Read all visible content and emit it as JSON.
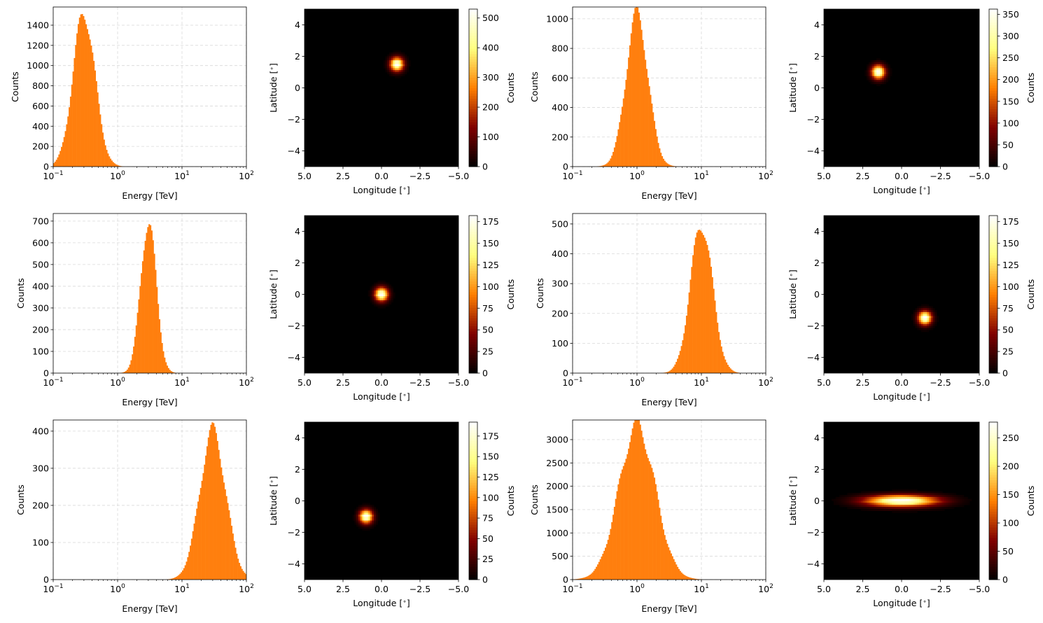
{
  "chart_data": [
    {
      "type": "bar",
      "xlabel": "Energy [TeV]",
      "ylabel": "Counts",
      "xscale": "log",
      "xlim": [
        0.1,
        100
      ],
      "ylim": [
        0,
        1580
      ],
      "xticks": [
        0.1,
        1,
        10,
        100
      ],
      "xtick_labels": [
        "10",
        "10",
        "10",
        "10"
      ],
      "xtick_exponents": [
        "−1",
        "0",
        "1",
        "2"
      ],
      "yticks": [
        0,
        200,
        400,
        600,
        800,
        1000,
        1200,
        1400
      ],
      "ytick_labels": [
        "0",
        "200",
        "400",
        "600",
        "800",
        "1000",
        "1200",
        "1400"
      ],
      "grid": true,
      "color": "#ff7f0e",
      "peak_energy": 0.3,
      "peak_count": 1520,
      "log_width": 0.17
    },
    {
      "type": "heatmap",
      "xlabel": "Longitude [$^{\\circ}$]",
      "ylabel": "Latitude [$^{\\circ}$]",
      "colorbar_label": "Counts",
      "xlim": [
        5,
        -5
      ],
      "ylim": [
        -5,
        5
      ],
      "xticks": [
        5,
        2.5,
        0,
        -2.5,
        -5
      ],
      "xtick_labels": [
        "5.0",
        "2.5",
        "0.0",
        "−2.5",
        "−5.0"
      ],
      "yticks": [
        4,
        2,
        0,
        -2,
        -4
      ],
      "ytick_labels": [
        "4",
        "2",
        "0",
        "−2",
        "−4"
      ],
      "colormap": "afmhot",
      "source": {
        "lon": -1.0,
        "lat": 1.5,
        "sigma_lon": 0.3,
        "sigma_lat": 0.3
      },
      "clim": [
        0,
        530
      ],
      "cbar_ticks": [
        0,
        100,
        200,
        300,
        400,
        500
      ],
      "cbar_tick_labels": [
        "0",
        "100",
        "200",
        "300",
        "400",
        "500"
      ]
    },
    {
      "type": "bar",
      "xlabel": "Energy [TeV]",
      "ylabel": "Counts",
      "xscale": "log",
      "xlim": [
        0.1,
        100
      ],
      "ylim": [
        0,
        1080
      ],
      "xticks": [
        0.1,
        1,
        10,
        100
      ],
      "xtick_labels": [
        "10",
        "10",
        "10",
        "10"
      ],
      "xtick_exponents": [
        "−1",
        "0",
        "1",
        "2"
      ],
      "yticks": [
        0,
        200,
        400,
        600,
        800,
        1000
      ],
      "ytick_labels": [
        "0",
        "200",
        "400",
        "600",
        "800",
        "1000"
      ],
      "grid": true,
      "color": "#ff7f0e",
      "peak_energy": 1.0,
      "peak_count": 1030,
      "log_width": 0.17
    },
    {
      "type": "heatmap",
      "xlabel": "Longitude [$^{\\circ}$]",
      "ylabel": "Latitude [$^{\\circ}$]",
      "colorbar_label": "Counts",
      "xlim": [
        5,
        -5
      ],
      "ylim": [
        -5,
        5
      ],
      "xticks": [
        5,
        2.5,
        0,
        -2.5,
        -5
      ],
      "xtick_labels": [
        "5.0",
        "2.5",
        "0.0",
        "−2.5",
        "−5.0"
      ],
      "yticks": [
        4,
        2,
        0,
        -2,
        -4
      ],
      "ytick_labels": [
        "4",
        "2",
        "0",
        "−2",
        "−4"
      ],
      "colormap": "afmhot",
      "source": {
        "lon": 1.5,
        "lat": 1.0,
        "sigma_lon": 0.3,
        "sigma_lat": 0.3
      },
      "clim": [
        0,
        362
      ],
      "cbar_ticks": [
        0,
        50,
        100,
        150,
        200,
        250,
        300,
        350
      ],
      "cbar_tick_labels": [
        "0",
        "50",
        "100",
        "150",
        "200",
        "250",
        "300",
        "350"
      ]
    },
    {
      "type": "bar",
      "xlabel": "Energy [TeV]",
      "ylabel": "Counts",
      "xscale": "log",
      "xlim": [
        0.1,
        100
      ],
      "ylim": [
        0,
        735
      ],
      "xticks": [
        0.1,
        1,
        10,
        100
      ],
      "xtick_labels": [
        "10",
        "10",
        "10",
        "10"
      ],
      "xtick_exponents": [
        "−1",
        "0",
        "1",
        "2"
      ],
      "yticks": [
        0,
        100,
        200,
        300,
        400,
        500,
        600,
        700
      ],
      "ytick_labels": [
        "0",
        "100",
        "200",
        "300",
        "400",
        "500",
        "600",
        "700"
      ],
      "grid": true,
      "color": "#ff7f0e",
      "peak_energy": 3.0,
      "peak_count": 700,
      "log_width": 0.12
    },
    {
      "type": "heatmap",
      "xlabel": "Longitude [$^{\\circ}$]",
      "ylabel": "Latitude [$^{\\circ}$]",
      "colorbar_label": "Counts",
      "xlim": [
        5,
        -5
      ],
      "ylim": [
        -5,
        5
      ],
      "xticks": [
        5,
        2.5,
        0,
        -2.5,
        -5
      ],
      "xtick_labels": [
        "5.0",
        "2.5",
        "0.0",
        "−2.5",
        "−5.0"
      ],
      "yticks": [
        4,
        2,
        0,
        -2,
        -4
      ],
      "ytick_labels": [
        "4",
        "2",
        "0",
        "−2",
        "−4"
      ],
      "colormap": "afmhot",
      "source": {
        "lon": 0.0,
        "lat": 0.0,
        "sigma_lon": 0.3,
        "sigma_lat": 0.3
      },
      "clim": [
        0,
        182
      ],
      "cbar_ticks": [
        0,
        25,
        50,
        75,
        100,
        125,
        150,
        175
      ],
      "cbar_tick_labels": [
        "0",
        "25",
        "50",
        "75",
        "100",
        "125",
        "150",
        "175"
      ]
    },
    {
      "type": "bar",
      "xlabel": "Energy [TeV]",
      "ylabel": "Counts",
      "xscale": "log",
      "xlim": [
        0.1,
        100
      ],
      "ylim": [
        0,
        535
      ],
      "xticks": [
        0.1,
        1,
        10,
        100
      ],
      "xtick_labels": [
        "10",
        "10",
        "10",
        "10"
      ],
      "xtick_exponents": [
        "−1",
        "0",
        "1",
        "2"
      ],
      "yticks": [
        0,
        100,
        200,
        300,
        400,
        500
      ],
      "ytick_labels": [
        "0",
        "100",
        "200",
        "300",
        "400",
        "500"
      ],
      "grid": true,
      "color": "#ff7f0e",
      "peak_energy": 10.0,
      "peak_count": 500,
      "log_width": 0.17
    },
    {
      "type": "heatmap",
      "xlabel": "Longitude [$^{\\circ}$]",
      "ylabel": "Latitude [$^{\\circ}$]",
      "colorbar_label": "Counts",
      "xlim": [
        5,
        -5
      ],
      "ylim": [
        -5,
        5
      ],
      "xticks": [
        5,
        2.5,
        0,
        -2.5,
        -5
      ],
      "xtick_labels": [
        "5.0",
        "2.5",
        "0.0",
        "−2.5",
        "−5.0"
      ],
      "yticks": [
        4,
        2,
        0,
        -2,
        -4
      ],
      "ytick_labels": [
        "4",
        "2",
        "0",
        "−2",
        "−4"
      ],
      "colormap": "afmhot",
      "source": {
        "lon": -1.5,
        "lat": -1.5,
        "sigma_lon": 0.3,
        "sigma_lat": 0.3
      },
      "clim": [
        0,
        182
      ],
      "cbar_ticks": [
        0,
        25,
        50,
        75,
        100,
        125,
        150,
        175
      ],
      "cbar_tick_labels": [
        "0",
        "25",
        "50",
        "75",
        "100",
        "125",
        "150",
        "175"
      ]
    },
    {
      "type": "bar",
      "xlabel": "Energy [TeV]",
      "ylabel": "Counts",
      "xscale": "log",
      "xlim": [
        0.1,
        100
      ],
      "ylim": [
        0,
        430
      ],
      "xticks": [
        0.1,
        1,
        10,
        100
      ],
      "xtick_labels": [
        "10",
        "10",
        "10",
        "10"
      ],
      "xtick_exponents": [
        "−1",
        "0",
        "1",
        "2"
      ],
      "yticks": [
        0,
        100,
        200,
        300,
        400
      ],
      "ytick_labels": [
        "0",
        "100",
        "200",
        "300",
        "400"
      ],
      "grid": true,
      "color": "#ff7f0e",
      "peak_energy": 30.0,
      "peak_count": 400,
      "log_width": 0.2
    },
    {
      "type": "heatmap",
      "xlabel": "Longitude [$^{\\circ}$]",
      "ylabel": "Latitude [$^{\\circ}$]",
      "colorbar_label": "Counts",
      "xlim": [
        5,
        -5
      ],
      "ylim": [
        -5,
        5
      ],
      "xticks": [
        5,
        2.5,
        0,
        -2.5,
        -5
      ],
      "xtick_labels": [
        "5.0",
        "2.5",
        "0.0",
        "−2.5",
        "−5.0"
      ],
      "yticks": [
        4,
        2,
        0,
        -2,
        -4
      ],
      "ytick_labels": [
        "4",
        "2",
        "0",
        "−2",
        "−4"
      ],
      "colormap": "afmhot",
      "source": {
        "lon": 1.0,
        "lat": -1.0,
        "sigma_lon": 0.3,
        "sigma_lat": 0.3
      },
      "clim": [
        0,
        192
      ],
      "cbar_ticks": [
        0,
        25,
        50,
        75,
        100,
        125,
        150,
        175
      ],
      "cbar_tick_labels": [
        "0",
        "25",
        "50",
        "75",
        "100",
        "125",
        "150",
        "175"
      ]
    },
    {
      "type": "bar",
      "xlabel": "Energy [TeV]",
      "ylabel": "Counts",
      "xscale": "log",
      "xlim": [
        0.1,
        100
      ],
      "ylim": [
        0,
        3420
      ],
      "xticks": [
        0.1,
        1,
        10,
        100
      ],
      "xtick_labels": [
        "10",
        "10",
        "10",
        "10"
      ],
      "xtick_exponents": [
        "−1",
        "0",
        "1",
        "2"
      ],
      "yticks": [
        0,
        500,
        1000,
        1500,
        2000,
        2500,
        3000
      ],
      "ytick_labels": [
        "0",
        "500",
        "1000",
        "1500",
        "2000",
        "2500",
        "3000"
      ],
      "grid": true,
      "color": "#ff7f0e",
      "peak_energy": 1.0,
      "peak_count": 3300,
      "log_width": 0.28
    },
    {
      "type": "heatmap",
      "xlabel": "Longitude [$^{\\circ}$]",
      "ylabel": "Latitude [$^{\\circ}$]",
      "colorbar_label": "Counts",
      "xlim": [
        5,
        -5
      ],
      "ylim": [
        -5,
        5
      ],
      "xticks": [
        5,
        2.5,
        0,
        -2.5,
        -5
      ],
      "xtick_labels": [
        "5.0",
        "2.5",
        "0.0",
        "−2.5",
        "−5.0"
      ],
      "yticks": [
        4,
        2,
        0,
        -2,
        -4
      ],
      "ytick_labels": [
        "4",
        "2",
        "0",
        "−2",
        "−4"
      ],
      "colormap": "afmhot",
      "source": {
        "lon": 0.0,
        "lat": 0.0,
        "sigma_lon": 1.6,
        "sigma_lat": 0.25
      },
      "clim": [
        0,
        278
      ],
      "cbar_ticks": [
        0,
        50,
        100,
        150,
        200,
        250
      ],
      "cbar_tick_labels": [
        "0",
        "50",
        "100",
        "150",
        "200",
        "250"
      ]
    }
  ]
}
